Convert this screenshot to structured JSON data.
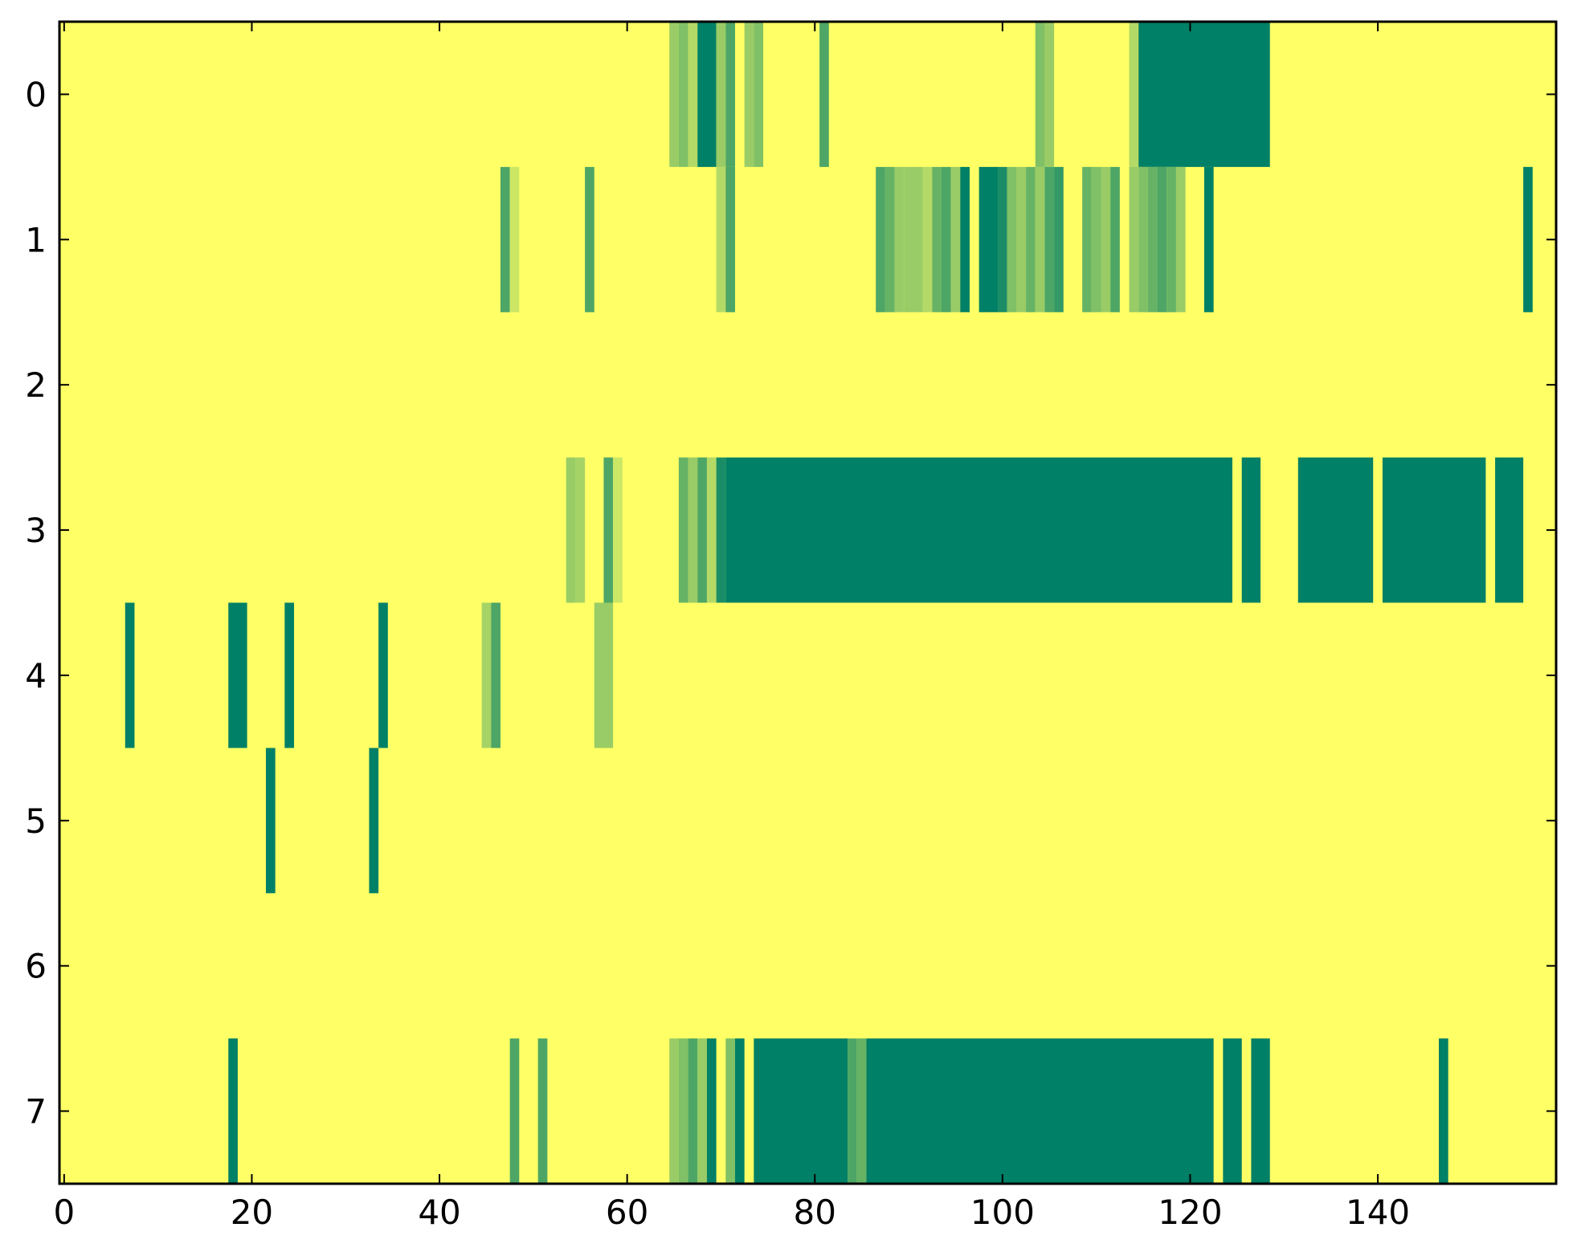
{
  "chart_data": {
    "type": "heatmap",
    "title": "",
    "xlabel": "",
    "ylabel": "",
    "xlim": [
      -0.5,
      159
    ],
    "ylim": [
      7.5,
      -0.5
    ],
    "x_ticks": [
      0,
      20,
      40,
      60,
      80,
      100,
      120,
      140
    ],
    "y_ticks": [
      0,
      1,
      2,
      3,
      4,
      5,
      6,
      7
    ],
    "x_tick_labels": [
      "0",
      "20",
      "40",
      "60",
      "80",
      "100",
      "120",
      "140"
    ],
    "y_tick_labels": [
      "0",
      "1",
      "2",
      "3",
      "4",
      "5",
      "6",
      "7"
    ],
    "grid": false,
    "legend": "none",
    "colormap": "summer_r",
    "value_range": [
      0,
      1
    ],
    "colors": {
      "low": "#ffff66",
      "high": "#008066",
      "frame": "#000000"
    },
    "background_value": 0,
    "rows": [
      {
        "row": 0,
        "segments": [
          {
            "start": 65,
            "end": 66,
            "value": 0.4
          },
          {
            "start": 66,
            "end": 67,
            "value": 0.5
          },
          {
            "start": 67,
            "end": 68,
            "value": 0.3
          },
          {
            "start": 68,
            "end": 70,
            "value": 1.0
          },
          {
            "start": 70,
            "end": 71,
            "value": 0.4
          },
          {
            "start": 71,
            "end": 72,
            "value": 0.7
          },
          {
            "start": 73,
            "end": 74,
            "value": 0.4
          },
          {
            "start": 74,
            "end": 75,
            "value": 0.5
          },
          {
            "start": 81,
            "end": 82,
            "value": 0.7
          },
          {
            "start": 104,
            "end": 105,
            "value": 0.5
          },
          {
            "start": 105,
            "end": 106,
            "value": 0.4
          },
          {
            "start": 114,
            "end": 115,
            "value": 0.3
          },
          {
            "start": 115,
            "end": 129,
            "value": 1.0
          }
        ]
      },
      {
        "row": 1,
        "segments": [
          {
            "start": 47,
            "end": 48,
            "value": 0.7
          },
          {
            "start": 48,
            "end": 49,
            "value": 0.2
          },
          {
            "start": 56,
            "end": 57,
            "value": 0.7
          },
          {
            "start": 70,
            "end": 71,
            "value": 0.3
          },
          {
            "start": 71,
            "end": 72,
            "value": 0.7
          },
          {
            "start": 87,
            "end": 88,
            "value": 0.7
          },
          {
            "start": 88,
            "end": 89,
            "value": 0.6
          },
          {
            "start": 89,
            "end": 90,
            "value": 0.4
          },
          {
            "start": 90,
            "end": 92,
            "value": 0.4
          },
          {
            "start": 92,
            "end": 93,
            "value": 0.3
          },
          {
            "start": 93,
            "end": 94,
            "value": 0.6
          },
          {
            "start": 94,
            "end": 95,
            "value": 0.7
          },
          {
            "start": 95,
            "end": 96,
            "value": 0.4
          },
          {
            "start": 96,
            "end": 97,
            "value": 1.0
          },
          {
            "start": 98,
            "end": 100,
            "value": 1.0
          },
          {
            "start": 100,
            "end": 101,
            "value": 0.9
          },
          {
            "start": 101,
            "end": 102,
            "value": 0.5
          },
          {
            "start": 102,
            "end": 103,
            "value": 0.4
          },
          {
            "start": 103,
            "end": 104,
            "value": 0.6
          },
          {
            "start": 104,
            "end": 105,
            "value": 0.4
          },
          {
            "start": 105,
            "end": 106,
            "value": 0.7
          },
          {
            "start": 106,
            "end": 107,
            "value": 0.8
          },
          {
            "start": 109,
            "end": 110,
            "value": 0.6
          },
          {
            "start": 110,
            "end": 111,
            "value": 0.5
          },
          {
            "start": 111,
            "end": 112,
            "value": 0.4
          },
          {
            "start": 112,
            "end": 113,
            "value": 0.7
          },
          {
            "start": 114,
            "end": 115,
            "value": 0.4
          },
          {
            "start": 115,
            "end": 116,
            "value": 0.5
          },
          {
            "start": 116,
            "end": 117,
            "value": 0.6
          },
          {
            "start": 117,
            "end": 118,
            "value": 0.7
          },
          {
            "start": 118,
            "end": 119,
            "value": 0.6
          },
          {
            "start": 119,
            "end": 120,
            "value": 0.4
          },
          {
            "start": 122,
            "end": 123,
            "value": 1.0
          },
          {
            "start": 156,
            "end": 157,
            "value": 1.0
          }
        ]
      },
      {
        "row": 2,
        "segments": []
      },
      {
        "row": 3,
        "segments": [
          {
            "start": 54,
            "end": 55,
            "value": 0.4
          },
          {
            "start": 55,
            "end": 56,
            "value": 0.35
          },
          {
            "start": 58,
            "end": 59,
            "value": 0.7
          },
          {
            "start": 59,
            "end": 60,
            "value": 0.2
          },
          {
            "start": 66,
            "end": 67,
            "value": 0.6
          },
          {
            "start": 67,
            "end": 68,
            "value": 0.4
          },
          {
            "start": 68,
            "end": 69,
            "value": 0.7
          },
          {
            "start": 69,
            "end": 70,
            "value": 0.3
          },
          {
            "start": 70,
            "end": 71,
            "value": 0.9
          },
          {
            "start": 71,
            "end": 125,
            "value": 1.0
          },
          {
            "start": 126,
            "end": 128,
            "value": 1.0
          },
          {
            "start": 132,
            "end": 140,
            "value": 1.0
          },
          {
            "start": 141,
            "end": 152,
            "value": 1.0
          },
          {
            "start": 153,
            "end": 156,
            "value": 1.0
          }
        ]
      },
      {
        "row": 4,
        "segments": [
          {
            "start": 7,
            "end": 8,
            "value": 1.0
          },
          {
            "start": 18,
            "end": 20,
            "value": 1.0
          },
          {
            "start": 24,
            "end": 25,
            "value": 1.0
          },
          {
            "start": 34,
            "end": 35,
            "value": 1.0
          },
          {
            "start": 45,
            "end": 46,
            "value": 0.35
          },
          {
            "start": 46,
            "end": 47,
            "value": 0.7
          },
          {
            "start": 57,
            "end": 59,
            "value": 0.4
          }
        ]
      },
      {
        "row": 5,
        "segments": [
          {
            "start": 22,
            "end": 23,
            "value": 1.0
          },
          {
            "start": 33,
            "end": 34,
            "value": 1.0
          }
        ]
      },
      {
        "row": 6,
        "segments": []
      },
      {
        "row": 7,
        "segments": [
          {
            "start": 18,
            "end": 19,
            "value": 1.0
          },
          {
            "start": 48,
            "end": 49,
            "value": 0.7
          },
          {
            "start": 51,
            "end": 52,
            "value": 0.7
          },
          {
            "start": 65,
            "end": 66,
            "value": 0.4
          },
          {
            "start": 66,
            "end": 67,
            "value": 0.5
          },
          {
            "start": 67,
            "end": 68,
            "value": 0.7
          },
          {
            "start": 68,
            "end": 69,
            "value": 0.4
          },
          {
            "start": 69,
            "end": 70,
            "value": 1.0
          },
          {
            "start": 71,
            "end": 72,
            "value": 0.5
          },
          {
            "start": 72,
            "end": 73,
            "value": 1.0
          },
          {
            "start": 74,
            "end": 84,
            "value": 1.0
          },
          {
            "start": 84,
            "end": 85,
            "value": 0.7
          },
          {
            "start": 85,
            "end": 86,
            "value": 0.6
          },
          {
            "start": 86,
            "end": 123,
            "value": 1.0
          },
          {
            "start": 124,
            "end": 126,
            "value": 1.0
          },
          {
            "start": 127,
            "end": 129,
            "value": 1.0
          },
          {
            "start": 147,
            "end": 148,
            "value": 1.0
          }
        ]
      }
    ]
  }
}
